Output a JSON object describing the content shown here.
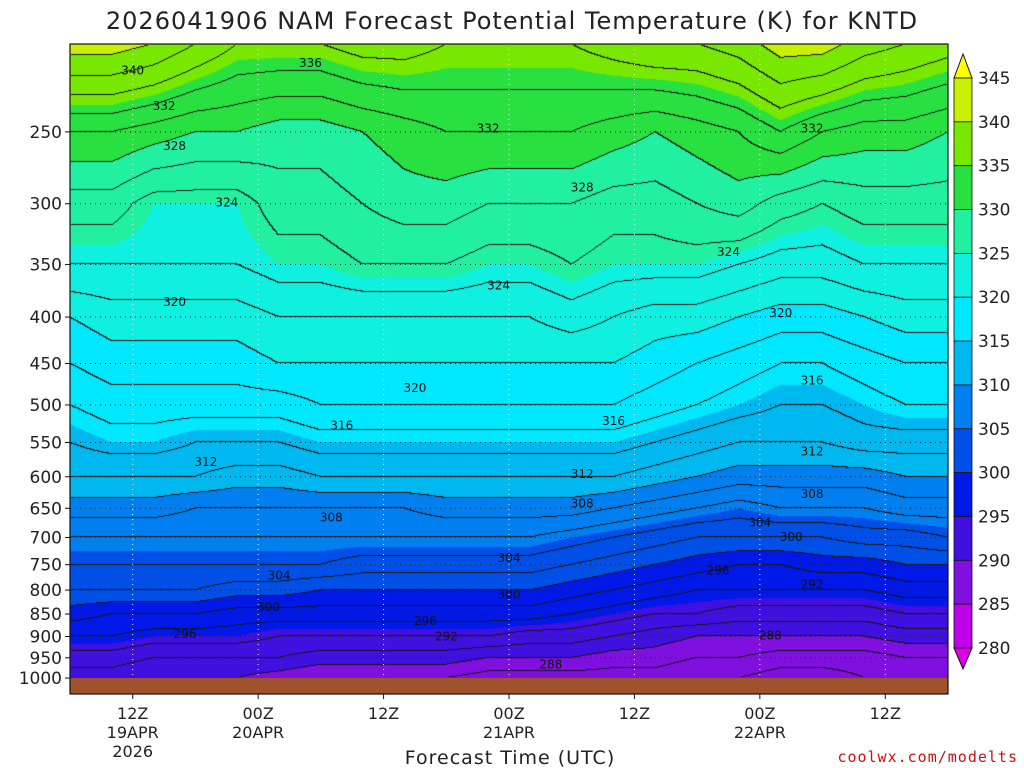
{
  "colors": {
    "ground": "#a0522d",
    "contour": "#000000",
    "credit": "#cc1111"
  },
  "credit": "coolwx.com/modelts",
  "chart_data": {
    "type": "heatmap",
    "title": "2026041906 NAM Forecast Potential Temperature (K) for KNTD",
    "xlabel": "Forecast Time (UTC)",
    "ylabel": "",
    "y_axis": {
      "scale": "log-pressure",
      "inverted": true,
      "range": [
        200,
        1000
      ],
      "ticks": [
        "250",
        "300",
        "350",
        "400",
        "450",
        "500",
        "550",
        "600",
        "650",
        "700",
        "750",
        "800",
        "850",
        "900",
        "950",
        "1000"
      ]
    },
    "x_axis": {
      "range_hours": [
        0,
        84
      ],
      "ticks": [
        {
          "hour": 6,
          "line1": "12Z",
          "line2": "19APR",
          "line3": "2026"
        },
        {
          "hour": 18,
          "line1": "00Z",
          "line2": "20APR",
          "line3": ""
        },
        {
          "hour": 30,
          "line1": "12Z",
          "line2": "",
          "line3": ""
        },
        {
          "hour": 42,
          "line1": "00Z",
          "line2": "21APR",
          "line3": ""
        },
        {
          "hour": 54,
          "line1": "12Z",
          "line2": "",
          "line3": ""
        },
        {
          "hour": 66,
          "line1": "00Z",
          "line2": "22APR",
          "line3": ""
        },
        {
          "hour": 78,
          "line1": "12Z",
          "line2": "",
          "line3": ""
        }
      ]
    },
    "grid": true,
    "colorbar": {
      "position": "right",
      "ticks": [
        "345",
        "340",
        "335",
        "330",
        "325",
        "320",
        "315",
        "310",
        "305",
        "300",
        "295",
        "290",
        "285",
        "280"
      ],
      "levels": [
        {
          "min": 345,
          "color": "#ffff00"
        },
        {
          "min": 340,
          "color": "#c8f000"
        },
        {
          "min": 335,
          "color": "#78e800"
        },
        {
          "min": 330,
          "color": "#28e040"
        },
        {
          "min": 325,
          "color": "#20f0a0"
        },
        {
          "min": 320,
          "color": "#10f0e0"
        },
        {
          "min": 315,
          "color": "#00e8ff"
        },
        {
          "min": 310,
          "color": "#00b8f0"
        },
        {
          "min": 305,
          "color": "#0080f0"
        },
        {
          "min": 300,
          "color": "#0050e8"
        },
        {
          "min": 295,
          "color": "#0018e8"
        },
        {
          "min": 290,
          "color": "#4010e0"
        },
        {
          "min": 285,
          "color": "#8010e0"
        },
        {
          "min": 280,
          "color": "#c000e8"
        },
        {
          "min": 0,
          "color": "#e000e8"
        }
      ]
    },
    "columns_hours": [
      0,
      4,
      8,
      12,
      16,
      20,
      24,
      28,
      32,
      36,
      40,
      44,
      48,
      52,
      56,
      60,
      64,
      68,
      72,
      76,
      80,
      84
    ],
    "rows_hpa": [
      200,
      250,
      300,
      350,
      400,
      450,
      500,
      550,
      600,
      650,
      700,
      750,
      800,
      850,
      900,
      950,
      1000
    ],
    "theta_k": [
      [
        341,
        341,
        340,
        338,
        336,
        336,
        336,
        337,
        337,
        336,
        336,
        336,
        336,
        337,
        338,
        338,
        339,
        341,
        341,
        339,
        338,
        337
      ],
      [
        332,
        332,
        331,
        330,
        330,
        329,
        329,
        330,
        331,
        332,
        332,
        332,
        332,
        331,
        330,
        331,
        332,
        334,
        332,
        331,
        331,
        330
      ],
      [
        327,
        327,
        325,
        325,
        325,
        327,
        327,
        328,
        329,
        329,
        328,
        328,
        328,
        327,
        327,
        328,
        329,
        327,
        326,
        327,
        327,
        327
      ],
      [
        324,
        324,
        324,
        324,
        324,
        325,
        325,
        326,
        326,
        326,
        325,
        325,
        326,
        325,
        325,
        325,
        324,
        323,
        323,
        324,
        324,
        324
      ],
      [
        320,
        321,
        321,
        321,
        321,
        322,
        322,
        322,
        322,
        322,
        322,
        322,
        323,
        322,
        321,
        321,
        320,
        319,
        319,
        320,
        321,
        321
      ],
      [
        318,
        319,
        319,
        319,
        319,
        320,
        320,
        320,
        320,
        320,
        320,
        320,
        320,
        320,
        319,
        318,
        317,
        316,
        316,
        317,
        318,
        318
      ],
      [
        316,
        317,
        317,
        317,
        317,
        317,
        318,
        318,
        318,
        318,
        318,
        318,
        318,
        318,
        317,
        316,
        315,
        314,
        314,
        315,
        316,
        316
      ],
      [
        314,
        315,
        315,
        314,
        314,
        314,
        315,
        315,
        315,
        315,
        315,
        315,
        315,
        315,
        314,
        313,
        312,
        312,
        312,
        313,
        313,
        313
      ],
      [
        312,
        312,
        312,
        312,
        311,
        311,
        312,
        312,
        312,
        312,
        312,
        312,
        312,
        312,
        311,
        310,
        309,
        309,
        309,
        309,
        310,
        310
      ],
      [
        309,
        309,
        309,
        308,
        308,
        308,
        308,
        308,
        308,
        309,
        309,
        309,
        309,
        308,
        307,
        306,
        305,
        306,
        306,
        306,
        307,
        307
      ],
      [
        306,
        306,
        306,
        306,
        306,
        306,
        306,
        306,
        306,
        306,
        306,
        306,
        305,
        304,
        303,
        302,
        302,
        302,
        302,
        303,
        303,
        304
      ],
      [
        304,
        304,
        304,
        304,
        304,
        304,
        304,
        303,
        303,
        303,
        303,
        303,
        302,
        301,
        300,
        299,
        298,
        298,
        299,
        299,
        300,
        300
      ],
      [
        302,
        302,
        302,
        302,
        301,
        301,
        300,
        300,
        300,
        300,
        300,
        300,
        299,
        298,
        297,
        296,
        296,
        296,
        296,
        296,
        297,
        297
      ],
      [
        299,
        298,
        298,
        298,
        297,
        297,
        297,
        297,
        297,
        297,
        297,
        297,
        296,
        295,
        294,
        294,
        293,
        293,
        293,
        293,
        294,
        294
      ],
      [
        296,
        296,
        295,
        295,
        295,
        294,
        294,
        294,
        294,
        294,
        294,
        293,
        293,
        292,
        291,
        290,
        290,
        290,
        290,
        290,
        291,
        291
      ],
      [
        293,
        293,
        292,
        292,
        292,
        292,
        291,
        291,
        291,
        291,
        290,
        290,
        290,
        289,
        289,
        288,
        288,
        287,
        287,
        287,
        288,
        288
      ],
      [
        291,
        291,
        290,
        290,
        290,
        289,
        288,
        288,
        288,
        288,
        287,
        287,
        287,
        287,
        287,
        286,
        286,
        285,
        285,
        286,
        286,
        286
      ]
    ],
    "contour_labels": [
      {
        "text": "340",
        "hour": 6,
        "hpa": 214
      },
      {
        "text": "336",
        "hour": 23,
        "hpa": 210
      },
      {
        "text": "332",
        "hour": 9,
        "hpa": 234
      },
      {
        "text": "332",
        "hour": 40,
        "hpa": 248
      },
      {
        "text": "332",
        "hour": 71,
        "hpa": 248
      },
      {
        "text": "328",
        "hour": 10,
        "hpa": 259
      },
      {
        "text": "328",
        "hour": 49,
        "hpa": 288
      },
      {
        "text": "324",
        "hour": 15,
        "hpa": 299
      },
      {
        "text": "324",
        "hour": 63,
        "hpa": 339
      },
      {
        "text": "324",
        "hour": 41,
        "hpa": 369
      },
      {
        "text": "320",
        "hour": 10,
        "hpa": 385
      },
      {
        "text": "320",
        "hour": 68,
        "hpa": 396
      },
      {
        "text": "320",
        "hour": 33,
        "hpa": 479
      },
      {
        "text": "316",
        "hour": 71,
        "hpa": 470
      },
      {
        "text": "316",
        "hour": 26,
        "hpa": 527
      },
      {
        "text": "316",
        "hour": 52,
        "hpa": 521
      },
      {
        "text": "312",
        "hour": 13,
        "hpa": 578
      },
      {
        "text": "312",
        "hour": 49,
        "hpa": 596
      },
      {
        "text": "312",
        "hour": 71,
        "hpa": 563
      },
      {
        "text": "308",
        "hour": 49,
        "hpa": 642
      },
      {
        "text": "308",
        "hour": 71,
        "hpa": 627
      },
      {
        "text": "308",
        "hour": 25,
        "hpa": 665
      },
      {
        "text": "304",
        "hour": 66,
        "hpa": 674
      },
      {
        "text": "304",
        "hour": 42,
        "hpa": 737
      },
      {
        "text": "304",
        "hour": 20,
        "hpa": 771
      },
      {
        "text": "300",
        "hour": 69,
        "hpa": 699
      },
      {
        "text": "300",
        "hour": 42,
        "hpa": 809
      },
      {
        "text": "300",
        "hour": 19,
        "hpa": 835
      },
      {
        "text": "296",
        "hour": 62,
        "hpa": 761
      },
      {
        "text": "296",
        "hour": 34,
        "hpa": 865
      },
      {
        "text": "296",
        "hour": 11,
        "hpa": 894
      },
      {
        "text": "292",
        "hour": 71,
        "hpa": 789
      },
      {
        "text": "292",
        "hour": 36,
        "hpa": 900
      },
      {
        "text": "288",
        "hour": 67,
        "hpa": 898
      },
      {
        "text": "288",
        "hour": 46,
        "hpa": 966
      }
    ]
  }
}
